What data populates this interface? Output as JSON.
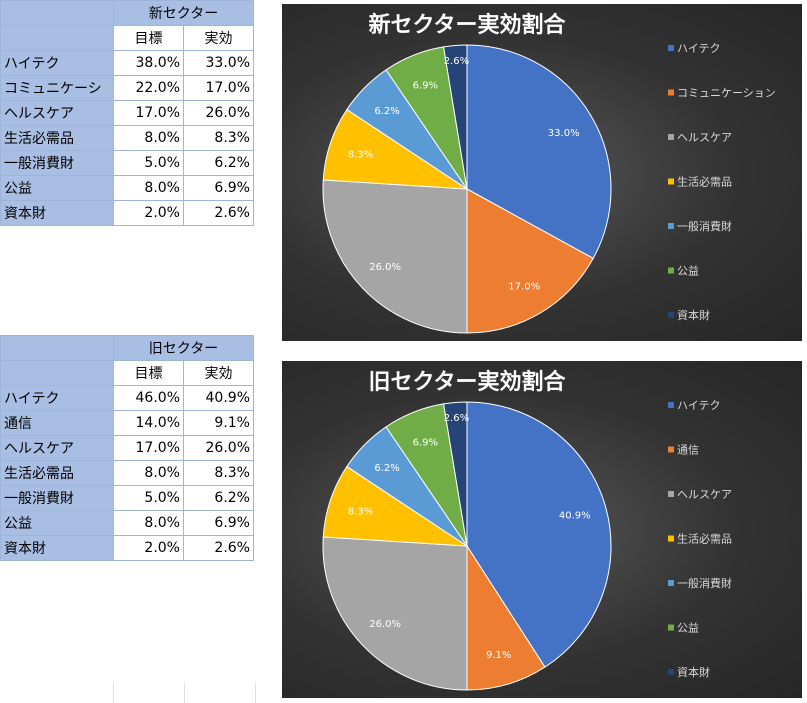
{
  "tables": [
    {
      "header": "新セクター",
      "col_target": "目標",
      "col_actual": "実効",
      "rows": [
        {
          "label": "ハイテク",
          "target": "38.0%",
          "actual": "33.0%"
        },
        {
          "label": "コミュニケーシ",
          "target": "22.0%",
          "actual": "17.0%"
        },
        {
          "label": "ヘルスケア",
          "target": "17.0%",
          "actual": "26.0%"
        },
        {
          "label": "生活必需品",
          "target": "8.0%",
          "actual": "8.3%"
        },
        {
          "label": "一般消費財",
          "target": "5.0%",
          "actual": "6.2%"
        },
        {
          "label": "公益",
          "target": "8.0%",
          "actual": "6.9%"
        },
        {
          "label": "資本財",
          "target": "2.0%",
          "actual": "2.6%"
        }
      ]
    },
    {
      "header": "旧セクター",
      "col_target": "目標",
      "col_actual": "実効",
      "rows": [
        {
          "label": "ハイテク",
          "target": "46.0%",
          "actual": "40.9%"
        },
        {
          "label": "通信",
          "target": "14.0%",
          "actual": "9.1%"
        },
        {
          "label": "ヘルスケア",
          "target": "17.0%",
          "actual": "26.0%"
        },
        {
          "label": "生活必需品",
          "target": "8.0%",
          "actual": "8.3%"
        },
        {
          "label": "一般消費財",
          "target": "5.0%",
          "actual": "6.2%"
        },
        {
          "label": "公益",
          "target": "8.0%",
          "actual": "6.9%"
        },
        {
          "label": "資本財",
          "target": "2.0%",
          "actual": "2.6%"
        }
      ]
    }
  ],
  "chart_data": [
    {
      "type": "pie",
      "title": "新セクター実効割合",
      "legend_position": "right",
      "categories": [
        "ハイテク",
        "コミュニケーション",
        "ヘルスケア",
        "生活必需品",
        "一般消費財",
        "公益",
        "資本財"
      ],
      "values": [
        33.0,
        17.0,
        26.0,
        8.3,
        6.2,
        6.9,
        2.6
      ],
      "labels": [
        "33.0%",
        "17.0%",
        "26.0%",
        "8.3%",
        "6.2%",
        "6.9%",
        "2.6%"
      ],
      "colors": [
        "#4472c4",
        "#ed7d31",
        "#a5a5a5",
        "#ffc000",
        "#5b9bd5",
        "#70ad47",
        "#264478"
      ]
    },
    {
      "type": "pie",
      "title": "旧セクター実効割合",
      "legend_position": "right",
      "categories": [
        "ハイテク",
        "通信",
        "ヘルスケア",
        "生活必需品",
        "一般消費財",
        "公益",
        "資本財"
      ],
      "values": [
        40.9,
        9.1,
        26.0,
        8.3,
        6.2,
        6.9,
        2.6
      ],
      "labels": [
        "40.9%",
        "9.1%",
        "26.0%",
        "8.3%",
        "6.2%",
        "6.9%",
        "2.6%"
      ],
      "colors": [
        "#4472c4",
        "#ed7d31",
        "#a5a5a5",
        "#ffc000",
        "#5b9bd5",
        "#70ad47",
        "#264478"
      ]
    }
  ]
}
